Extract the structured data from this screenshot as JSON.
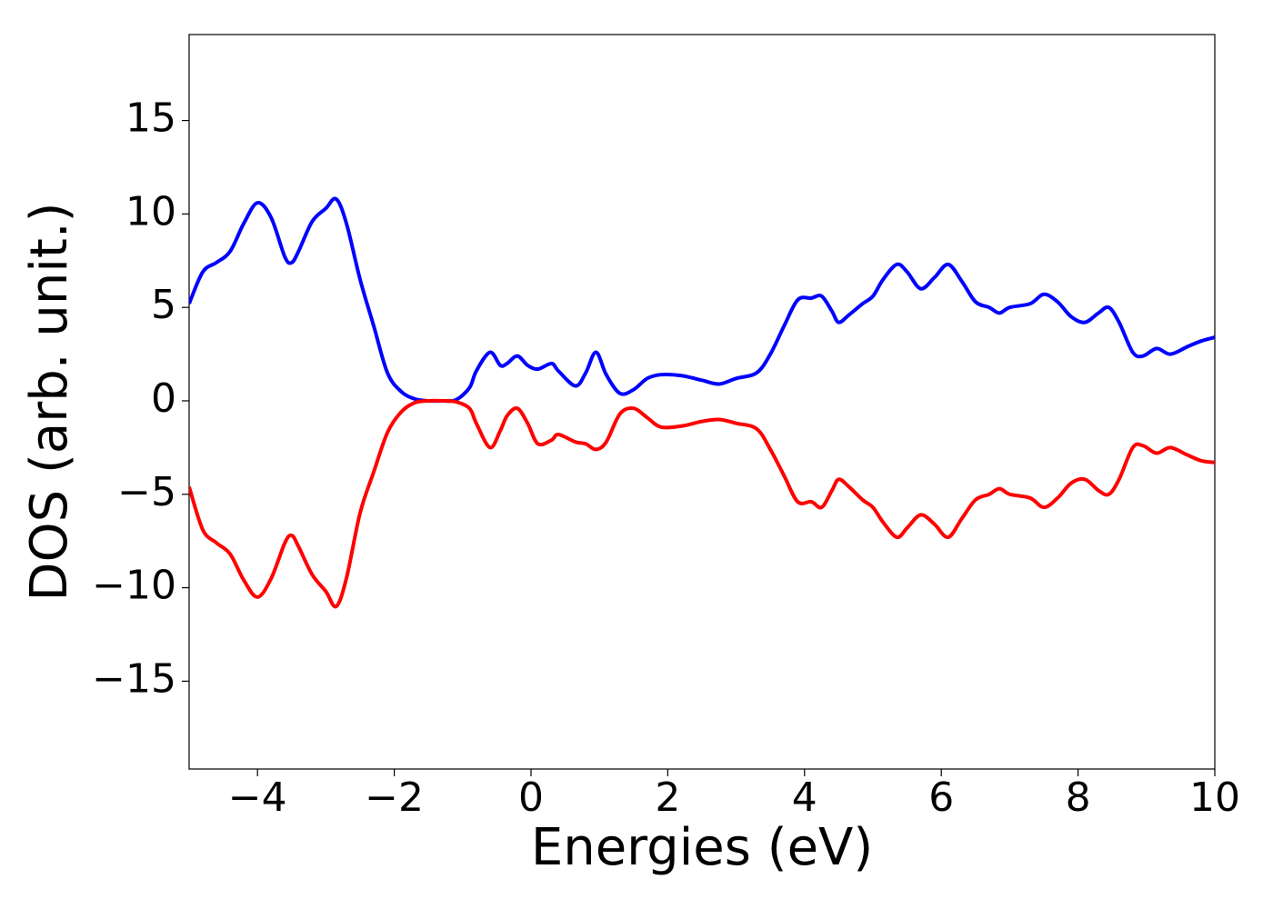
{
  "chart_data": {
    "type": "line",
    "x_label": "Energies (eV)",
    "y_label": "DOS (arb. unit.)",
    "x": [
      -5,
      -4.8,
      -4.6,
      -4.4,
      -4.2,
      -4.0,
      -3.8,
      -3.6,
      -3.5,
      -3.4,
      -3.2,
      -3.0,
      -2.85,
      -2.7,
      -2.5,
      -2.3,
      -2.1,
      -1.9,
      -1.7,
      -1.5,
      -1.3,
      -1.1,
      -0.9,
      -0.8,
      -0.6,
      -0.45,
      -0.35,
      -0.2,
      -0.05,
      0.1,
      0.3,
      0.4,
      0.65,
      0.8,
      0.95,
      1.1,
      1.3,
      1.5,
      1.7,
      1.9,
      2.2,
      2.5,
      2.75,
      3.0,
      3.3,
      3.5,
      3.7,
      3.9,
      4.1,
      4.25,
      4.4,
      4.5,
      4.65,
      4.85,
      5.0,
      5.15,
      5.35,
      5.5,
      5.7,
      5.9,
      6.1,
      6.3,
      6.5,
      6.7,
      6.85,
      7.0,
      7.3,
      7.5,
      7.7,
      7.9,
      8.1,
      8.3,
      8.45,
      8.6,
      8.8,
      8.95,
      9.15,
      9.35,
      9.6,
      9.8,
      10
    ],
    "series": [
      {
        "color": "#0000ff",
        "values": [
          5.2,
          6.9,
          7.4,
          8.0,
          9.5,
          10.6,
          9.8,
          7.7,
          7.4,
          8.0,
          9.6,
          10.3,
          10.8,
          9.5,
          6.5,
          4.0,
          1.5,
          0.5,
          0.1,
          0,
          0,
          0.05,
          0.7,
          1.6,
          2.6,
          1.9,
          2.0,
          2.4,
          1.9,
          1.7,
          2.0,
          1.6,
          0.8,
          1.5,
          2.6,
          1.4,
          0.4,
          0.6,
          1.2,
          1.4,
          1.35,
          1.1,
          0.9,
          1.2,
          1.5,
          2.5,
          4.0,
          5.4,
          5.5,
          5.6,
          4.8,
          4.2,
          4.6,
          5.2,
          5.6,
          6.5,
          7.3,
          6.9,
          6.0,
          6.6,
          7.3,
          6.4,
          5.3,
          5.0,
          4.7,
          5.0,
          5.2,
          5.7,
          5.3,
          4.5,
          4.2,
          4.7,
          5.0,
          4.2,
          2.6,
          2.4,
          2.8,
          2.5,
          2.9,
          3.2,
          3.4
        ]
      },
      {
        "color": "#ff0000",
        "values": [
          -4.6,
          -6.9,
          -7.6,
          -8.2,
          -9.6,
          -10.5,
          -9.5,
          -7.6,
          -7.2,
          -7.8,
          -9.3,
          -10.2,
          -11.0,
          -9.5,
          -6.0,
          -3.8,
          -1.7,
          -0.6,
          -0.1,
          0,
          0,
          -0.05,
          -0.4,
          -1.2,
          -2.5,
          -1.6,
          -0.8,
          -0.4,
          -1.2,
          -2.3,
          -2.1,
          -1.8,
          -2.2,
          -2.3,
          -2.6,
          -2.2,
          -0.7,
          -0.4,
          -0.9,
          -1.4,
          -1.35,
          -1.1,
          -1.0,
          -1.2,
          -1.5,
          -2.6,
          -4.0,
          -5.4,
          -5.4,
          -5.7,
          -4.8,
          -4.2,
          -4.6,
          -5.3,
          -5.7,
          -6.5,
          -7.3,
          -6.8,
          -6.1,
          -6.6,
          -7.3,
          -6.3,
          -5.3,
          -5.0,
          -4.7,
          -5.0,
          -5.2,
          -5.7,
          -5.2,
          -4.4,
          -4.2,
          -4.8,
          -5.0,
          -4.2,
          -2.5,
          -2.4,
          -2.8,
          -2.5,
          -2.9,
          -3.2,
          -3.3
        ]
      }
    ],
    "xlim": [
      -5,
      10
    ],
    "xticks": [
      {
        "value": -4,
        "label": "−4"
      },
      {
        "value": -2,
        "label": "−2"
      },
      0,
      2,
      4,
      6,
      8,
      10
    ],
    "ylim": [
      -19.7,
      19.6
    ],
    "yticks": [
      {
        "value": -15,
        "label": "−15"
      },
      {
        "value": -10,
        "label": "−10"
      },
      {
        "value": -5,
        "label": "−5"
      },
      0,
      5,
      10,
      15
    ],
    "grid": false
  }
}
